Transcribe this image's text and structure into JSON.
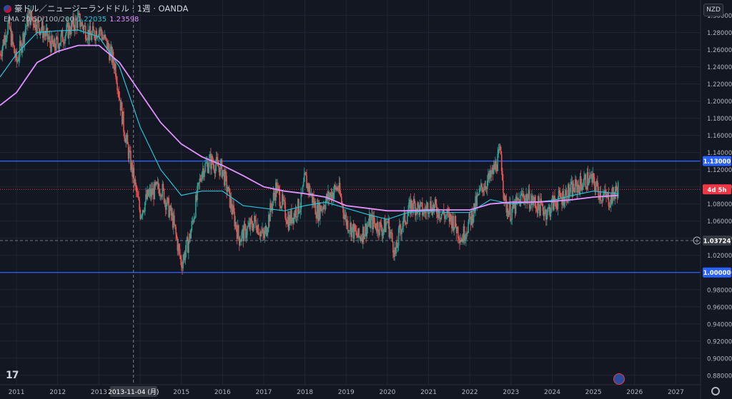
{
  "header": {
    "symbol_title": "豪ドル／ニュージーランドドル · 1週 · OANDA",
    "ema_label": "EMA 20/50/100/200",
    "ema_value_1": "1.22035",
    "ema_value_2": "1.23598"
  },
  "currency_button": "NZD",
  "crosshair_date_label": "2013-11-04 (月)",
  "price_tags": {
    "upper_line": "1.13000",
    "lower_line": "1.00000",
    "crosshair": "1.03724",
    "countdown": "4d 5h"
  },
  "logo_text": "17",
  "colors": {
    "background": "#131722",
    "grid": "#1f2533",
    "bull": "#26a69a",
    "bear": "#ef5350",
    "ema_fast": "#26c6da",
    "ema_slow": "#e091ff",
    "hline": "#2962ff",
    "crosshair": "#9598a1"
  },
  "chart_data": {
    "type": "line",
    "title": "豪ドル／ニュージーランドドル · 1週 · OANDA",
    "xlabel": "",
    "ylabel": "",
    "x_ticks": [
      "2011",
      "2012",
      "2013",
      "2014",
      "2015",
      "2016",
      "2017",
      "2018",
      "2019",
      "2020",
      "2021",
      "2022",
      "2023",
      "2024",
      "2025",
      "2026",
      "2027"
    ],
    "y_ticks": [
      "1.30000",
      "1.28000",
      "1.26000",
      "1.24000",
      "1.22000",
      "1.20000",
      "1.18000",
      "1.16000",
      "1.14000",
      "1.12000",
      "1.10000",
      "1.08000",
      "1.06000",
      "1.04000",
      "1.02000",
      "1.00000",
      "0.98000",
      "0.96000",
      "0.94000",
      "0.92000",
      "0.90000",
      "0.88000"
    ],
    "xlim": [
      2010.6,
      2027.6
    ],
    "ylim": [
      0.869,
      1.318
    ],
    "horizontal_lines": [
      1.13,
      1.0
    ],
    "crosshair": {
      "x": 2013.84,
      "y": 1.03724
    },
    "price_path": [
      [
        2010.6,
        1.255
      ],
      [
        2010.8,
        1.29
      ],
      [
        2011.0,
        1.245
      ],
      [
        2011.3,
        1.3
      ],
      [
        2011.6,
        1.285
      ],
      [
        2011.9,
        1.262
      ],
      [
        2012.2,
        1.28
      ],
      [
        2012.5,
        1.295
      ],
      [
        2012.8,
        1.275
      ],
      [
        2013.0,
        1.285
      ],
      [
        2013.2,
        1.265
      ],
      [
        2013.4,
        1.24
      ],
      [
        2013.6,
        1.17
      ],
      [
        2013.8,
        1.12
      ],
      [
        2014.0,
        1.07
      ],
      [
        2014.2,
        1.09
      ],
      [
        2014.5,
        1.1
      ],
      [
        2014.8,
        1.06
      ],
      [
        2015.0,
        1.01
      ],
      [
        2015.2,
        1.04
      ],
      [
        2015.5,
        1.12
      ],
      [
        2015.7,
        1.13
      ],
      [
        2016.0,
        1.12
      ],
      [
        2016.2,
        1.08
      ],
      [
        2016.4,
        1.04
      ],
      [
        2016.8,
        1.06
      ],
      [
        2017.0,
        1.04
      ],
      [
        2017.3,
        1.1
      ],
      [
        2017.6,
        1.06
      ],
      [
        2017.9,
        1.08
      ],
      [
        2018.0,
        1.11
      ],
      [
        2018.3,
        1.07
      ],
      [
        2018.6,
        1.09
      ],
      [
        2018.8,
        1.1
      ],
      [
        2019.0,
        1.06
      ],
      [
        2019.3,
        1.04
      ],
      [
        2019.6,
        1.06
      ],
      [
        2019.9,
        1.05
      ],
      [
        2020.0,
        1.06
      ],
      [
        2020.2,
        1.02
      ],
      [
        2020.3,
        1.05
      ],
      [
        2020.6,
        1.08
      ],
      [
        2020.9,
        1.07
      ],
      [
        2021.0,
        1.08
      ],
      [
        2021.3,
        1.07
      ],
      [
        2021.6,
        1.06
      ],
      [
        2021.8,
        1.04
      ],
      [
        2022.0,
        1.06
      ],
      [
        2022.3,
        1.1
      ],
      [
        2022.5,
        1.11
      ],
      [
        2022.75,
        1.14
      ],
      [
        2022.85,
        1.08
      ],
      [
        2023.0,
        1.07
      ],
      [
        2023.3,
        1.09
      ],
      [
        2023.6,
        1.08
      ],
      [
        2023.9,
        1.07
      ],
      [
        2024.0,
        1.08
      ],
      [
        2024.3,
        1.09
      ],
      [
        2024.6,
        1.1
      ],
      [
        2024.9,
        1.11
      ],
      [
        2025.0,
        1.105
      ],
      [
        2025.2,
        1.09
      ],
      [
        2025.4,
        1.085
      ],
      [
        2025.6,
        1.098
      ]
    ],
    "series": [
      {
        "name": "EMA",
        "color": "#26c6da",
        "points": [
          [
            2010.6,
            1.228
          ],
          [
            2011.0,
            1.255
          ],
          [
            2011.5,
            1.28
          ],
          [
            2012.0,
            1.282
          ],
          [
            2012.5,
            1.283
          ],
          [
            2013.0,
            1.275
          ],
          [
            2013.5,
            1.24
          ],
          [
            2014.0,
            1.17
          ],
          [
            2014.5,
            1.12
          ],
          [
            2015.0,
            1.09
          ],
          [
            2015.5,
            1.095
          ],
          [
            2016.0,
            1.095
          ],
          [
            2016.5,
            1.078
          ],
          [
            2017.0,
            1.075
          ],
          [
            2017.5,
            1.072
          ],
          [
            2018.0,
            1.078
          ],
          [
            2018.5,
            1.082
          ],
          [
            2019.0,
            1.075
          ],
          [
            2019.5,
            1.068
          ],
          [
            2020.0,
            1.062
          ],
          [
            2020.5,
            1.07
          ],
          [
            2021.0,
            1.072
          ],
          [
            2021.5,
            1.07
          ],
          [
            2022.0,
            1.07
          ],
          [
            2022.5,
            1.085
          ],
          [
            2023.0,
            1.08
          ],
          [
            2023.5,
            1.082
          ],
          [
            2024.0,
            1.084
          ],
          [
            2024.5,
            1.09
          ],
          [
            2025.0,
            1.095
          ],
          [
            2025.6,
            1.092
          ]
        ]
      },
      {
        "name": "EMA",
        "color": "#e091ff",
        "points": [
          [
            2010.6,
            1.195
          ],
          [
            2011.0,
            1.21
          ],
          [
            2011.5,
            1.245
          ],
          [
            2012.0,
            1.258
          ],
          [
            2012.5,
            1.265
          ],
          [
            2013.0,
            1.265
          ],
          [
            2013.5,
            1.245
          ],
          [
            2014.0,
            1.21
          ],
          [
            2014.5,
            1.175
          ],
          [
            2015.0,
            1.15
          ],
          [
            2015.5,
            1.135
          ],
          [
            2016.0,
            1.125
          ],
          [
            2016.5,
            1.113
          ],
          [
            2017.0,
            1.1
          ],
          [
            2017.5,
            1.095
          ],
          [
            2018.0,
            1.092
          ],
          [
            2018.5,
            1.088
          ],
          [
            2019.0,
            1.078
          ],
          [
            2019.5,
            1.075
          ],
          [
            2020.0,
            1.072
          ],
          [
            2020.5,
            1.072
          ],
          [
            2021.0,
            1.073
          ],
          [
            2021.5,
            1.073
          ],
          [
            2022.0,
            1.073
          ],
          [
            2022.5,
            1.08
          ],
          [
            2023.0,
            1.082
          ],
          [
            2023.5,
            1.082
          ],
          [
            2024.0,
            1.083
          ],
          [
            2024.5,
            1.085
          ],
          [
            2025.0,
            1.088
          ],
          [
            2025.6,
            1.09
          ]
        ]
      }
    ]
  }
}
